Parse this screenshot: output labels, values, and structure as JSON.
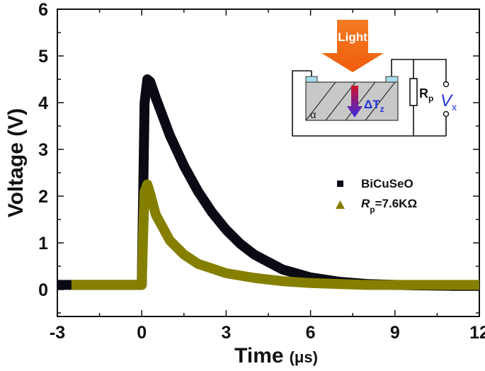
{
  "chart_data": {
    "type": "line",
    "title": "",
    "xlabel": "Time",
    "xlabel_unit": "(μs)",
    "ylabel": "Voltage (V)",
    "xlim": [
      -3,
      12
    ],
    "ylim": [
      -0.6,
      6
    ],
    "xticks": [
      "-3",
      "0",
      "3",
      "6",
      "9",
      "12"
    ],
    "yticks": [
      "0",
      "1",
      "2",
      "3",
      "4",
      "5",
      "6"
    ],
    "grid": false,
    "legend_position": "right-center inside",
    "series": [
      {
        "name": "BiCuSeO",
        "marker": "square",
        "color": "#0a0a14",
        "x": [
          -3,
          -2,
          -1,
          0,
          0.05,
          0.1,
          0.2,
          0.3,
          0.5,
          1,
          1.5,
          2,
          2.5,
          3,
          3.5,
          4,
          5,
          6,
          7,
          8,
          9,
          10,
          11,
          12
        ],
        "y": [
          0.1,
          0.1,
          0.1,
          0.1,
          2.0,
          4.0,
          4.5,
          4.45,
          4.1,
          3.3,
          2.65,
          2.1,
          1.65,
          1.28,
          0.98,
          0.75,
          0.43,
          0.26,
          0.17,
          0.12,
          0.1,
          0.09,
          0.08,
          0.08
        ]
      },
      {
        "name": "Rp=7.6KΩ",
        "marker": "triangle",
        "color": "#857f00",
        "x": [
          -2.5,
          -2,
          -1,
          0,
          0.05,
          0.1,
          0.2,
          0.3,
          0.5,
          1,
          1.5,
          2,
          3,
          4,
          5,
          6,
          7,
          8,
          9,
          10,
          11,
          12
        ],
        "y": [
          0.1,
          0.1,
          0.1,
          0.1,
          1.2,
          2.1,
          2.25,
          2.05,
          1.6,
          1.05,
          0.75,
          0.55,
          0.35,
          0.25,
          0.18,
          0.14,
          0.12,
          0.1,
          0.1,
          0.1,
          0.1,
          0.1
        ]
      }
    ],
    "annotations": {
      "inset_light_label": "Light",
      "inset_alpha_label": "α",
      "inset_delta_t": "ΔT",
      "inset_delta_t_sub": "z",
      "inset_resistor_label": "R",
      "inset_resistor_sub": "p",
      "inset_voltage_label": "V",
      "inset_voltage_sub": "x"
    }
  },
  "legend": {
    "item1": "BiCuSeO",
    "item2_main": "R",
    "item2_sub": "p",
    "item2_rest": "=7.6KΩ"
  },
  "colors": {
    "series1": "#0a0a14",
    "series2": "#857f00",
    "light_arrow": "#f36f16",
    "substrate": "#c8c8c8",
    "electrode": "#a8dced",
    "voltage_text": "#2233dd"
  }
}
